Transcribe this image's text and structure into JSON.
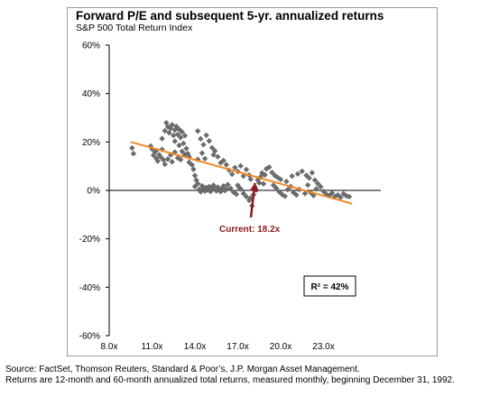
{
  "chart_data": {
    "type": "scatter",
    "title": "Forward P/E and subsequent 5-yr. annualized returns",
    "subtitle": "S&P 500 Total Return Index",
    "xlabel": "",
    "ylabel": "",
    "xlim": [
      8,
      26
    ],
    "ylim": [
      -60,
      60
    ],
    "x_ticks": [
      "8.0x",
      "11.0x",
      "14.0x",
      "17.0x",
      "20.0x",
      "23.0x"
    ],
    "y_ticks": [
      "60%",
      "40%",
      "20%",
      "0%",
      "-20%",
      "-40%",
      "-60%"
    ],
    "grid": false,
    "points": [
      [
        9.6,
        17.5
      ],
      [
        9.7,
        15.2
      ],
      [
        10.9,
        18.3
      ],
      [
        11.0,
        17.1
      ],
      [
        11.1,
        14.5
      ],
      [
        11.2,
        15.8
      ],
      [
        11.3,
        13.2
      ],
      [
        11.3,
        16.4
      ],
      [
        11.4,
        12.1
      ],
      [
        11.5,
        14.7
      ],
      [
        11.6,
        13.8
      ],
      [
        11.7,
        16.9
      ],
      [
        11.8,
        12.6
      ],
      [
        11.9,
        10.8
      ],
      [
        11.7,
        21.4
      ],
      [
        11.9,
        24.6
      ],
      [
        12.0,
        27.9
      ],
      [
        12.1,
        26.3
      ],
      [
        12.2,
        23.8
      ],
      [
        12.3,
        25.6
      ],
      [
        12.4,
        27.1
      ],
      [
        12.5,
        22.7
      ],
      [
        12.6,
        24.9
      ],
      [
        12.6,
        20.3
      ],
      [
        12.7,
        26.4
      ],
      [
        12.8,
        23.1
      ],
      [
        12.9,
        25.2
      ],
      [
        12.9,
        18.6
      ],
      [
        13.0,
        21.8
      ],
      [
        13.1,
        24.1
      ],
      [
        13.2,
        19.4
      ],
      [
        13.3,
        22.6
      ],
      [
        13.4,
        17.3
      ],
      [
        13.5,
        15.2
      ],
      [
        13.6,
        13.9
      ],
      [
        13.1,
        16.1
      ],
      [
        12.6,
        15.8
      ],
      [
        12.3,
        14.6
      ],
      [
        12.1,
        12.9
      ],
      [
        12.4,
        11.8
      ],
      [
        12.8,
        13.4
      ],
      [
        13.0,
        12.7
      ],
      [
        13.3,
        14.8
      ],
      [
        13.6,
        11.6
      ],
      [
        13.8,
        10.5
      ],
      [
        13.9,
        8.7
      ],
      [
        14.0,
        6.1
      ],
      [
        14.1,
        4.2
      ],
      [
        14.2,
        2.8
      ],
      [
        14.0,
        1.6
      ],
      [
        14.3,
        0.4
      ],
      [
        14.4,
        -0.6
      ],
      [
        14.5,
        1.9
      ],
      [
        14.6,
        0.8
      ],
      [
        14.7,
        -0.3
      ],
      [
        14.8,
        1.2
      ],
      [
        14.9,
        0.1
      ],
      [
        15.0,
        1.5
      ],
      [
        15.1,
        -0.4
      ],
      [
        15.2,
        0.9
      ],
      [
        15.3,
        2.1
      ],
      [
        15.4,
        0.6
      ],
      [
        15.5,
        -0.2
      ],
      [
        15.6,
        1.3
      ],
      [
        15.7,
        0.3
      ],
      [
        15.8,
        -0.5
      ],
      [
        15.9,
        0.7
      ],
      [
        16.0,
        1.8
      ],
      [
        16.1,
        -0.1
      ],
      [
        16.2,
        0.5
      ],
      [
        16.3,
        2.4
      ],
      [
        14.2,
        24.5
      ],
      [
        14.4,
        21.3
      ],
      [
        14.6,
        18.9
      ],
      [
        14.8,
        22.8
      ],
      [
        15.0,
        20.4
      ],
      [
        15.2,
        17.6
      ],
      [
        15.4,
        16.3
      ],
      [
        15.6,
        13.9
      ],
      [
        15.8,
        11.4
      ],
      [
        14.5,
        15.4
      ],
      [
        14.2,
        12.8
      ],
      [
        14.7,
        13.1
      ],
      [
        15.3,
        14.7
      ],
      [
        16.0,
        12.3
      ],
      [
        16.2,
        10.6
      ],
      [
        16.4,
        8.3
      ],
      [
        16.6,
        6.7
      ],
      [
        16.8,
        9.4
      ],
      [
        17.0,
        7.8
      ],
      [
        17.2,
        10.1
      ],
      [
        17.4,
        5.9
      ],
      [
        17.6,
        8.6
      ],
      [
        17.8,
        6.3
      ],
      [
        17.9,
        4.6
      ],
      [
        17.0,
        2.1
      ],
      [
        17.2,
        0.6
      ],
      [
        17.4,
        -1.3
      ],
      [
        17.6,
        -2.6
      ],
      [
        17.8,
        -4.1
      ],
      [
        17.9,
        -3.2
      ],
      [
        18.0,
        -6.4
      ],
      [
        18.1,
        -1.8
      ],
      [
        18.2,
        1.4
      ],
      [
        18.3,
        0.2
      ],
      [
        18.4,
        4.3
      ],
      [
        18.5,
        3.1
      ],
      [
        18.6,
        5.6
      ],
      [
        18.7,
        7.2
      ],
      [
        18.8,
        2.7
      ],
      [
        18.9,
        6.4
      ],
      [
        19.0,
        8.9
      ],
      [
        19.2,
        9.6
      ],
      [
        19.4,
        7.4
      ],
      [
        19.6,
        6.1
      ],
      [
        19.8,
        5.3
      ],
      [
        20.0,
        4.5
      ],
      [
        19.5,
        2.1
      ],
      [
        19.7,
        0.9
      ],
      [
        19.9,
        -0.6
      ],
      [
        20.1,
        -1.7
      ],
      [
        20.3,
        -2.4
      ],
      [
        20.5,
        0.3
      ],
      [
        20.7,
        1.6
      ],
      [
        20.9,
        -0.9
      ],
      [
        21.1,
        -1.9
      ],
      [
        21.3,
        0.4
      ],
      [
        20.4,
        3.7
      ],
      [
        20.8,
        5.9
      ],
      [
        21.2,
        6.8
      ],
      [
        21.5,
        7.9
      ],
      [
        21.8,
        6.2
      ],
      [
        22.0,
        5.1
      ],
      [
        22.2,
        7.3
      ],
      [
        22.4,
        4.2
      ],
      [
        22.6,
        2.8
      ],
      [
        22.8,
        1.5
      ],
      [
        23.0,
        -0.4
      ],
      [
        23.2,
        -1.6
      ],
      [
        23.4,
        -2.2
      ],
      [
        23.6,
        -1.1
      ],
      [
        23.8,
        -2.6
      ],
      [
        24.0,
        -1.9
      ],
      [
        24.2,
        -2.9
      ],
      [
        24.4,
        -1.4
      ],
      [
        24.6,
        -2.3
      ],
      [
        24.8,
        -2.6
      ],
      [
        22.1,
        -0.9
      ],
      [
        22.3,
        -2.1
      ],
      [
        22.5,
        0.6
      ],
      [
        21.7,
        -1.3
      ],
      [
        21.9,
        2.2
      ],
      [
        16.9,
        -1.6
      ],
      [
        17.1,
        1.2
      ],
      [
        16.5,
        0.9
      ],
      [
        16.7,
        -0.7
      ]
    ],
    "trendline": {
      "x": [
        9.5,
        25.0
      ],
      "y": [
        20,
        -5.5
      ],
      "color": "#f08a24"
    },
    "marker_color": "#6b6b6b",
    "annotation": {
      "label": "Current: 18.2x",
      "x": 18.2,
      "y": 3.0,
      "color": "#8b1a1a"
    },
    "r2_label": "R² = 42%"
  },
  "footer": {
    "source_line1": "Source: FactSet, Thomson Reuters, Standard & Poor’s, J.P. Morgan Asset Management.",
    "source_line2": "Returns are 12-month and 60-month annualized total returns, measured monthly, beginning December 31, 1992."
  }
}
